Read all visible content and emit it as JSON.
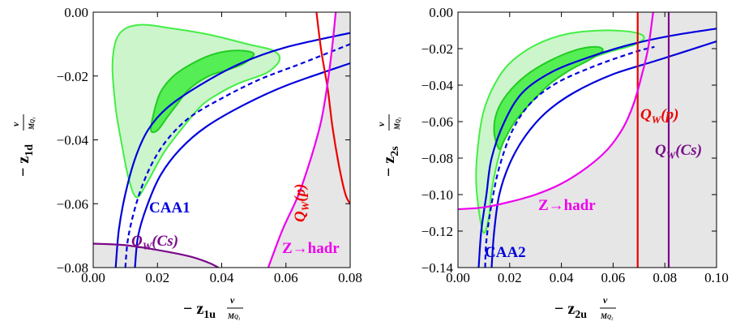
{
  "chart_data": [
    {
      "type": "line",
      "xlim": [
        0.0,
        0.08
      ],
      "ylim": [
        -0.08,
        0.0
      ],
      "xticks": [
        "0.00",
        "0.02",
        "0.04",
        "0.06",
        "0.08"
      ],
      "yticks": [
        "0.00",
        "−0.02",
        "−0.04",
        "−0.06",
        "−0.08"
      ],
      "xlabel_main": "− z",
      "xlabel_sub": "1u",
      "xlabel_frac_num": "v",
      "xlabel_frac_den": "M",
      "ylabel_main": "− z",
      "ylabel_sub": "1d",
      "ylabel_frac_num": "v",
      "ylabel_frac_den": "M",
      "annotations": [
        {
          "text": "CAA1",
          "color": "#0000dd"
        },
        {
          "text": "Q_W(Cs)",
          "main": "Q",
          "sub": "W",
          "arg": "(Cs)",
          "color": "#7a0a8a"
        },
        {
          "text": "Q_W(p)",
          "main": "Q",
          "sub": "W",
          "arg": "(p)",
          "color": "#ee0000"
        },
        {
          "text": "Z→hadr",
          "color": "#ee00ee"
        }
      ],
      "series": [
        {
          "name": "CAA1",
          "style": "dashed",
          "color": "#0000dd",
          "points": [
            [
              0.01,
              -0.08
            ],
            [
              0.011,
              -0.07
            ],
            [
              0.014,
              -0.058
            ],
            [
              0.018,
              -0.048
            ],
            [
              0.023,
              -0.04
            ],
            [
              0.03,
              -0.033
            ],
            [
              0.04,
              -0.027
            ],
            [
              0.052,
              -0.021
            ],
            [
              0.065,
              -0.016
            ],
            [
              0.08,
              -0.01
            ]
          ]
        },
        {
          "name": "CAA1 lower band",
          "style": "solid",
          "color": "#0000dd",
          "points": [
            [
              0.007,
              -0.08
            ],
            [
              0.008,
              -0.068
            ],
            [
              0.01,
              -0.057
            ],
            [
              0.013,
              -0.046
            ],
            [
              0.017,
              -0.037
            ],
            [
              0.023,
              -0.03
            ],
            [
              0.033,
              -0.023
            ],
            [
              0.046,
              -0.016
            ],
            [
              0.06,
              -0.011
            ],
            [
              0.08,
              -0.0065
            ]
          ]
        },
        {
          "name": "CAA1 upper band",
          "style": "solid",
          "color": "#0000dd",
          "points": [
            [
              0.013,
              -0.08
            ],
            [
              0.014,
              -0.07
            ],
            [
              0.017,
              -0.06
            ],
            [
              0.021,
              -0.051
            ],
            [
              0.027,
              -0.043
            ],
            [
              0.035,
              -0.036
            ],
            [
              0.047,
              -0.029
            ],
            [
              0.06,
              -0.023
            ],
            [
              0.08,
              -0.016
            ]
          ]
        },
        {
          "name": "Q_W(p)",
          "style": "solid",
          "color": "#ee0000",
          "points": [
            [
              0.0695,
              0.0
            ],
            [
              0.071,
              -0.012
            ],
            [
              0.073,
              -0.024
            ],
            [
              0.0745,
              -0.036
            ],
            [
              0.0765,
              -0.048
            ],
            [
              0.0785,
              -0.057
            ],
            [
              0.08,
              -0.06
            ]
          ]
        },
        {
          "name": "Z→hadr",
          "style": "solid",
          "color": "#ee00ee",
          "points": [
            [
              0.0545,
              -0.08
            ],
            [
              0.059,
              -0.068
            ],
            [
              0.064,
              -0.057
            ],
            [
              0.068,
              -0.045
            ],
            [
              0.071,
              -0.034
            ],
            [
              0.073,
              -0.022
            ],
            [
              0.0745,
              -0.01
            ],
            [
              0.0755,
              0.0
            ]
          ]
        },
        {
          "name": "Q_W(Cs)",
          "style": "solid",
          "color": "#7a0a8a",
          "points": [
            [
              0.0,
              -0.0725
            ],
            [
              0.01,
              -0.073
            ],
            [
              0.02,
              -0.0745
            ],
            [
              0.03,
              -0.0765
            ],
            [
              0.036,
              -0.0785
            ],
            [
              0.039,
              -0.08
            ]
          ]
        }
      ],
      "regions": [
        {
          "name": "95% CL",
          "color": "#ccf5cc",
          "edge": "#44ee44",
          "points": [
            [
              0.0135,
              -0.058
            ],
            [
              0.011,
              -0.052
            ],
            [
              0.009,
              -0.042
            ],
            [
              0.007,
              -0.03
            ],
            [
              0.006,
              -0.016
            ],
            [
              0.008,
              -0.007
            ],
            [
              0.014,
              -0.004
            ],
            [
              0.024,
              -0.005
            ],
            [
              0.036,
              -0.007
            ],
            [
              0.048,
              -0.01
            ],
            [
              0.056,
              -0.012
            ],
            [
              0.058,
              -0.015
            ],
            [
              0.054,
              -0.019
            ],
            [
              0.046,
              -0.022
            ],
            [
              0.04,
              -0.025
            ],
            [
              0.034,
              -0.029
            ],
            [
              0.028,
              -0.036
            ],
            [
              0.022,
              -0.044
            ],
            [
              0.017,
              -0.053
            ]
          ]
        },
        {
          "name": "68% CL",
          "color": "#55ee55",
          "edge": "#22cc22",
          "points": [
            [
              0.018,
              -0.037
            ],
            [
              0.019,
              -0.031
            ],
            [
              0.021,
              -0.025
            ],
            [
              0.025,
              -0.02
            ],
            [
              0.031,
              -0.016
            ],
            [
              0.038,
              -0.013
            ],
            [
              0.045,
              -0.012
            ],
            [
              0.05,
              -0.013
            ],
            [
              0.047,
              -0.016
            ],
            [
              0.042,
              -0.018
            ],
            [
              0.036,
              -0.02
            ],
            [
              0.03,
              -0.024
            ],
            [
              0.026,
              -0.029
            ],
            [
              0.023,
              -0.033
            ],
            [
              0.02,
              -0.037
            ]
          ]
        }
      ],
      "excluded_region": {
        "color": "#e6e6e6"
      }
    },
    {
      "type": "line",
      "xlim": [
        0.0,
        0.1
      ],
      "ylim": [
        -0.14,
        0.0
      ],
      "xticks": [
        "0.00",
        "0.02",
        "0.04",
        "0.06",
        "0.08",
        "0.10"
      ],
      "yticks": [
        "0.00",
        "−0.02",
        "−0.04",
        "−0.06",
        "−0.08",
        "−0.10",
        "−0.12",
        "−0.14"
      ],
      "xlabel_main": "− z",
      "xlabel_sub": "2u",
      "xlabel_frac_num": "v",
      "xlabel_frac_den": "M",
      "ylabel_main": "− z",
      "ylabel_sub": "2s",
      "ylabel_frac_num": "v",
      "ylabel_frac_den": "M",
      "annotations": [
        {
          "text": "CAA2",
          "color": "#0000dd"
        },
        {
          "text": "Q_W(p)",
          "main": "Q",
          "sub": "W",
          "arg": "(p)",
          "color": "#ee0000"
        },
        {
          "text": "Q_W(Cs)",
          "main": "Q",
          "sub": "W",
          "arg": "(Cs)",
          "color": "#7a0a8a"
        },
        {
          "text": "Z→hadr",
          "color": "#ee00ee"
        }
      ],
      "series": [
        {
          "name": "CAA2",
          "style": "dashed",
          "color": "#0000dd",
          "points": [
            [
              0.0105,
              -0.14
            ],
            [
              0.011,
              -0.125
            ],
            [
              0.013,
              -0.105
            ],
            [
              0.016,
              -0.085
            ],
            [
              0.021,
              -0.065
            ],
            [
              0.028,
              -0.05
            ],
            [
              0.038,
              -0.039
            ],
            [
              0.052,
              -0.03
            ],
            [
              0.068,
              -0.022
            ],
            [
              0.076,
              -0.019
            ]
          ]
        },
        {
          "name": "CAA2 lower band",
          "style": "solid",
          "color": "#0000dd",
          "points": [
            [
              0.008,
              -0.14
            ],
            [
              0.009,
              -0.12
            ],
            [
              0.011,
              -0.1
            ],
            [
              0.013,
              -0.08
            ],
            [
              0.018,
              -0.06
            ],
            [
              0.025,
              -0.044
            ],
            [
              0.036,
              -0.033
            ],
            [
              0.05,
              -0.025
            ],
            [
              0.066,
              -0.018
            ],
            [
              0.082,
              -0.013
            ],
            [
              0.1,
              -0.009
            ]
          ]
        },
        {
          "name": "CAA2 upper band",
          "style": "solid",
          "color": "#0000dd",
          "points": [
            [
              0.013,
              -0.14
            ],
            [
              0.014,
              -0.12
            ],
            [
              0.016,
              -0.1
            ],
            [
              0.02,
              -0.083
            ],
            [
              0.026,
              -0.068
            ],
            [
              0.034,
              -0.055
            ],
            [
              0.045,
              -0.044
            ],
            [
              0.06,
              -0.034
            ],
            [
              0.078,
              -0.026
            ],
            [
              0.1,
              -0.016
            ]
          ]
        },
        {
          "name": "Q_W(p)",
          "style": "solid",
          "color": "#ee0000",
          "points": [
            [
              0.0695,
              0.0
            ],
            [
              0.0695,
              -0.14
            ]
          ]
        },
        {
          "name": "Q_W(Cs)",
          "style": "solid",
          "color": "#7a0a8a",
          "points": [
            [
              0.0815,
              0.0
            ],
            [
              0.0815,
              -0.14
            ]
          ]
        },
        {
          "name": "Z→hadr",
          "style": "solid",
          "color": "#ee00ee",
          "points": [
            [
              0.0,
              -0.108
            ],
            [
              0.01,
              -0.107
            ],
            [
              0.02,
              -0.104
            ],
            [
              0.03,
              -0.1
            ],
            [
              0.04,
              -0.094
            ],
            [
              0.05,
              -0.085
            ],
            [
              0.058,
              -0.075
            ],
            [
              0.064,
              -0.063
            ],
            [
              0.068,
              -0.05
            ],
            [
              0.071,
              -0.035
            ],
            [
              0.0735,
              -0.02
            ],
            [
              0.0755,
              0.0
            ]
          ]
        }
      ],
      "regions": [
        {
          "name": "95% CL",
          "color": "#ccf5cc",
          "edge": "#44ee44",
          "points": [
            [
              0.01,
              -0.121
            ],
            [
              0.008,
              -0.108
            ],
            [
              0.007,
              -0.09
            ],
            [
              0.008,
              -0.07
            ],
            [
              0.01,
              -0.054
            ],
            [
              0.014,
              -0.04
            ],
            [
              0.02,
              -0.028
            ],
            [
              0.03,
              -0.018
            ],
            [
              0.042,
              -0.012
            ],
            [
              0.056,
              -0.01
            ],
            [
              0.068,
              -0.011
            ],
            [
              0.072,
              -0.014
            ],
            [
              0.068,
              -0.018
            ],
            [
              0.058,
              -0.022
            ],
            [
              0.046,
              -0.028
            ],
            [
              0.034,
              -0.036
            ],
            [
              0.026,
              -0.046
            ],
            [
              0.02,
              -0.06
            ],
            [
              0.016,
              -0.078
            ],
            [
              0.013,
              -0.098
            ],
            [
              0.012,
              -0.112
            ]
          ]
        },
        {
          "name": "68% CL",
          "color": "#55ee55",
          "edge": "#22cc22",
          "points": [
            [
              0.016,
              -0.075
            ],
            [
              0.014,
              -0.066
            ],
            [
              0.015,
              -0.055
            ],
            [
              0.019,
              -0.045
            ],
            [
              0.026,
              -0.035
            ],
            [
              0.035,
              -0.027
            ],
            [
              0.045,
              -0.021
            ],
            [
              0.053,
              -0.019
            ],
            [
              0.056,
              -0.021
            ],
            [
              0.051,
              -0.026
            ],
            [
              0.043,
              -0.032
            ],
            [
              0.035,
              -0.04
            ],
            [
              0.028,
              -0.05
            ],
            [
              0.022,
              -0.06
            ],
            [
              0.018,
              -0.07
            ]
          ]
        }
      ],
      "excluded_region": {
        "color": "#e6e6e6"
      }
    }
  ]
}
